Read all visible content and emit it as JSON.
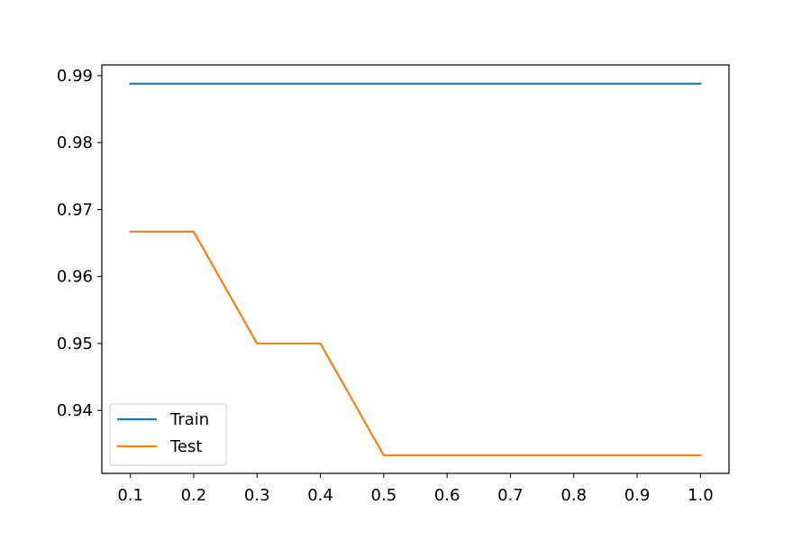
{
  "chart_data": {
    "type": "line",
    "title": "",
    "xlabel": "",
    "ylabel": "",
    "x": [
      0.1,
      0.2,
      0.3,
      0.4,
      0.5,
      0.6,
      0.7,
      0.8,
      0.9,
      1.0
    ],
    "series": [
      {
        "name": "Train",
        "color": "#1f77b4",
        "values": [
          0.9888,
          0.9888,
          0.9888,
          0.9888,
          0.9888,
          0.9888,
          0.9888,
          0.9888,
          0.9888,
          0.9888
        ]
      },
      {
        "name": "Test",
        "color": "#ff7f0e",
        "values": [
          0.9667,
          0.9667,
          0.95,
          0.95,
          0.9333,
          0.9333,
          0.9333,
          0.9333,
          0.9333,
          0.9333
        ]
      }
    ],
    "xlim": [
      0.055,
      1.045
    ],
    "ylim": [
      0.9306,
      0.9916
    ],
    "xticks": [
      0.1,
      0.2,
      0.3,
      0.4,
      0.5,
      0.6,
      0.7,
      0.8,
      0.9,
      1.0
    ],
    "xtick_labels": [
      "0.1",
      "0.2",
      "0.3",
      "0.4",
      "0.5",
      "0.6",
      "0.7",
      "0.8",
      "0.9",
      "1.0"
    ],
    "yticks": [
      0.94,
      0.95,
      0.96,
      0.97,
      0.98,
      0.99
    ],
    "ytick_labels": [
      "0.94",
      "0.95",
      "0.96",
      "0.97",
      "0.98",
      "0.99"
    ],
    "grid": false,
    "legend_position": "lower-left"
  }
}
